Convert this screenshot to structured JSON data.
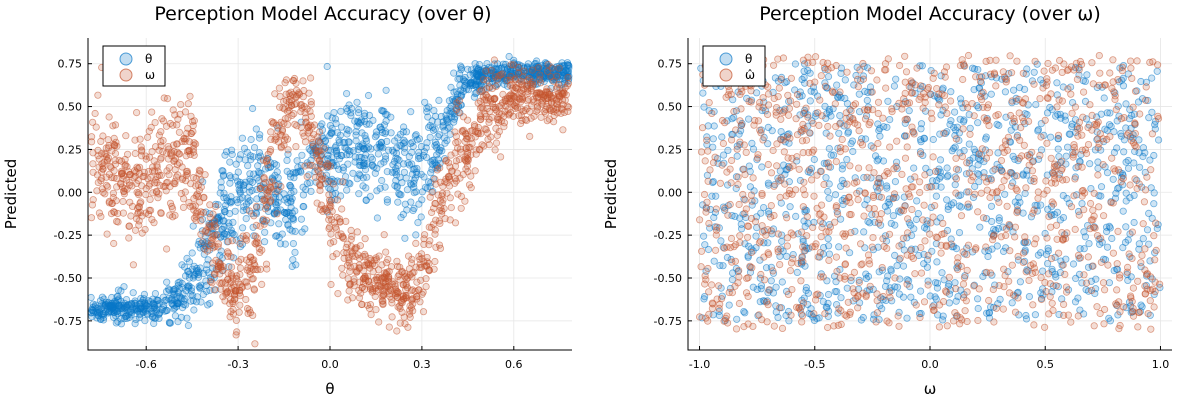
{
  "chart_data": [
    {
      "type": "scatter",
      "title": "Perception Model Accuracy (over θ)",
      "xlabel": "θ",
      "ylabel": "Predicted",
      "xlim": [
        -0.79,
        0.79
      ],
      "ylim": [
        -0.92,
        0.9
      ],
      "xticks": [
        -0.6,
        -0.3,
        0.0,
        0.3,
        0.6
      ],
      "xtick_labels": [
        "-0.6",
        "-0.3",
        "0.0",
        "0.3",
        "0.6"
      ],
      "yticks": [
        -0.75,
        -0.5,
        -0.25,
        0.0,
        0.25,
        0.5,
        0.75
      ],
      "ytick_labels": [
        "-0.75",
        "-0.50",
        "-0.25",
        "0.00",
        "0.25",
        "0.50",
        "0.75"
      ],
      "grid": true,
      "legend_position": "top-left",
      "series": [
        {
          "name": "θ",
          "color": "#0a78c8",
          "profile": {
            "x": [
              -0.78,
              -0.6,
              -0.5,
              -0.45,
              -0.4,
              -0.35,
              -0.3,
              -0.25,
              -0.2,
              -0.15,
              -0.1,
              -0.05,
              0.0,
              0.05,
              0.1,
              0.15,
              0.2,
              0.25,
              0.3,
              0.35,
              0.4,
              0.45,
              0.5,
              0.6,
              0.78
            ],
            "center": [
              -0.68,
              -0.68,
              -0.62,
              -0.5,
              -0.35,
              -0.15,
              0.05,
              0.12,
              0.0,
              -0.1,
              0.0,
              0.15,
              0.22,
              0.25,
              0.26,
              0.25,
              0.2,
              0.12,
              0.15,
              0.3,
              0.5,
              0.62,
              0.68,
              0.7,
              0.7
            ],
            "spread": [
              0.06,
              0.07,
              0.1,
              0.2,
              0.3,
              0.35,
              0.3,
              0.3,
              0.25,
              0.25,
              0.3,
              0.28,
              0.25,
              0.25,
              0.28,
              0.3,
              0.3,
              0.3,
              0.3,
              0.25,
              0.18,
              0.1,
              0.07,
              0.06,
              0.06
            ]
          }
        },
        {
          "name": "ω",
          "color": "#c4542e",
          "profile": {
            "x": [
              -0.78,
              -0.7,
              -0.6,
              -0.5,
              -0.45,
              -0.4,
              -0.35,
              -0.3,
              -0.25,
              -0.2,
              -0.15,
              -0.12,
              -0.08,
              -0.05,
              0.0,
              0.05,
              0.1,
              0.15,
              0.2,
              0.25,
              0.3,
              0.35,
              0.4,
              0.5,
              0.6,
              0.7,
              0.78
            ],
            "center": [
              0.2,
              0.05,
              0.05,
              0.2,
              0.15,
              -0.2,
              -0.5,
              -0.6,
              -0.4,
              0.05,
              0.45,
              0.55,
              0.45,
              0.25,
              -0.1,
              -0.35,
              -0.5,
              -0.5,
              -0.55,
              -0.6,
              -0.45,
              -0.15,
              0.15,
              0.45,
              0.55,
              0.55,
              0.55
            ],
            "spread": [
              0.35,
              0.3,
              0.3,
              0.3,
              0.3,
              0.25,
              0.2,
              0.22,
              0.3,
              0.3,
              0.25,
              0.2,
              0.25,
              0.28,
              0.25,
              0.22,
              0.18,
              0.18,
              0.18,
              0.18,
              0.2,
              0.25,
              0.3,
              0.22,
              0.15,
              0.15,
              0.15
            ]
          }
        }
      ]
    },
    {
      "type": "scatter",
      "title": "Perception Model Accuracy (over ω)",
      "xlabel": "ω",
      "ylabel": "Predicted",
      "xlim": [
        -1.05,
        1.05
      ],
      "ylim": [
        -0.92,
        0.9
      ],
      "xticks": [
        -1.0,
        -0.5,
        0.0,
        0.5,
        1.0
      ],
      "xtick_labels": [
        "-1.0",
        "-0.5",
        "0.0",
        "0.5",
        "1.0"
      ],
      "yticks": [
        -0.75,
        -0.5,
        -0.25,
        0.0,
        0.25,
        0.5,
        0.75
      ],
      "ytick_labels": [
        "-0.75",
        "-0.50",
        "-0.25",
        "0.00",
        "0.25",
        "0.50",
        "0.75"
      ],
      "grid": true,
      "legend_position": "top-left",
      "series": [
        {
          "name": "θ",
          "color": "#0a78c8",
          "distribution": {
            "x_range": [
              -1.0,
              1.0
            ],
            "y_range": [
              -0.75,
              0.75
            ]
          }
        },
        {
          "name": "ω̂",
          "color": "#c4542e",
          "distribution": {
            "x_range": [
              -1.0,
              1.0
            ],
            "y_range": [
              -0.8,
              0.8
            ]
          }
        }
      ]
    }
  ]
}
